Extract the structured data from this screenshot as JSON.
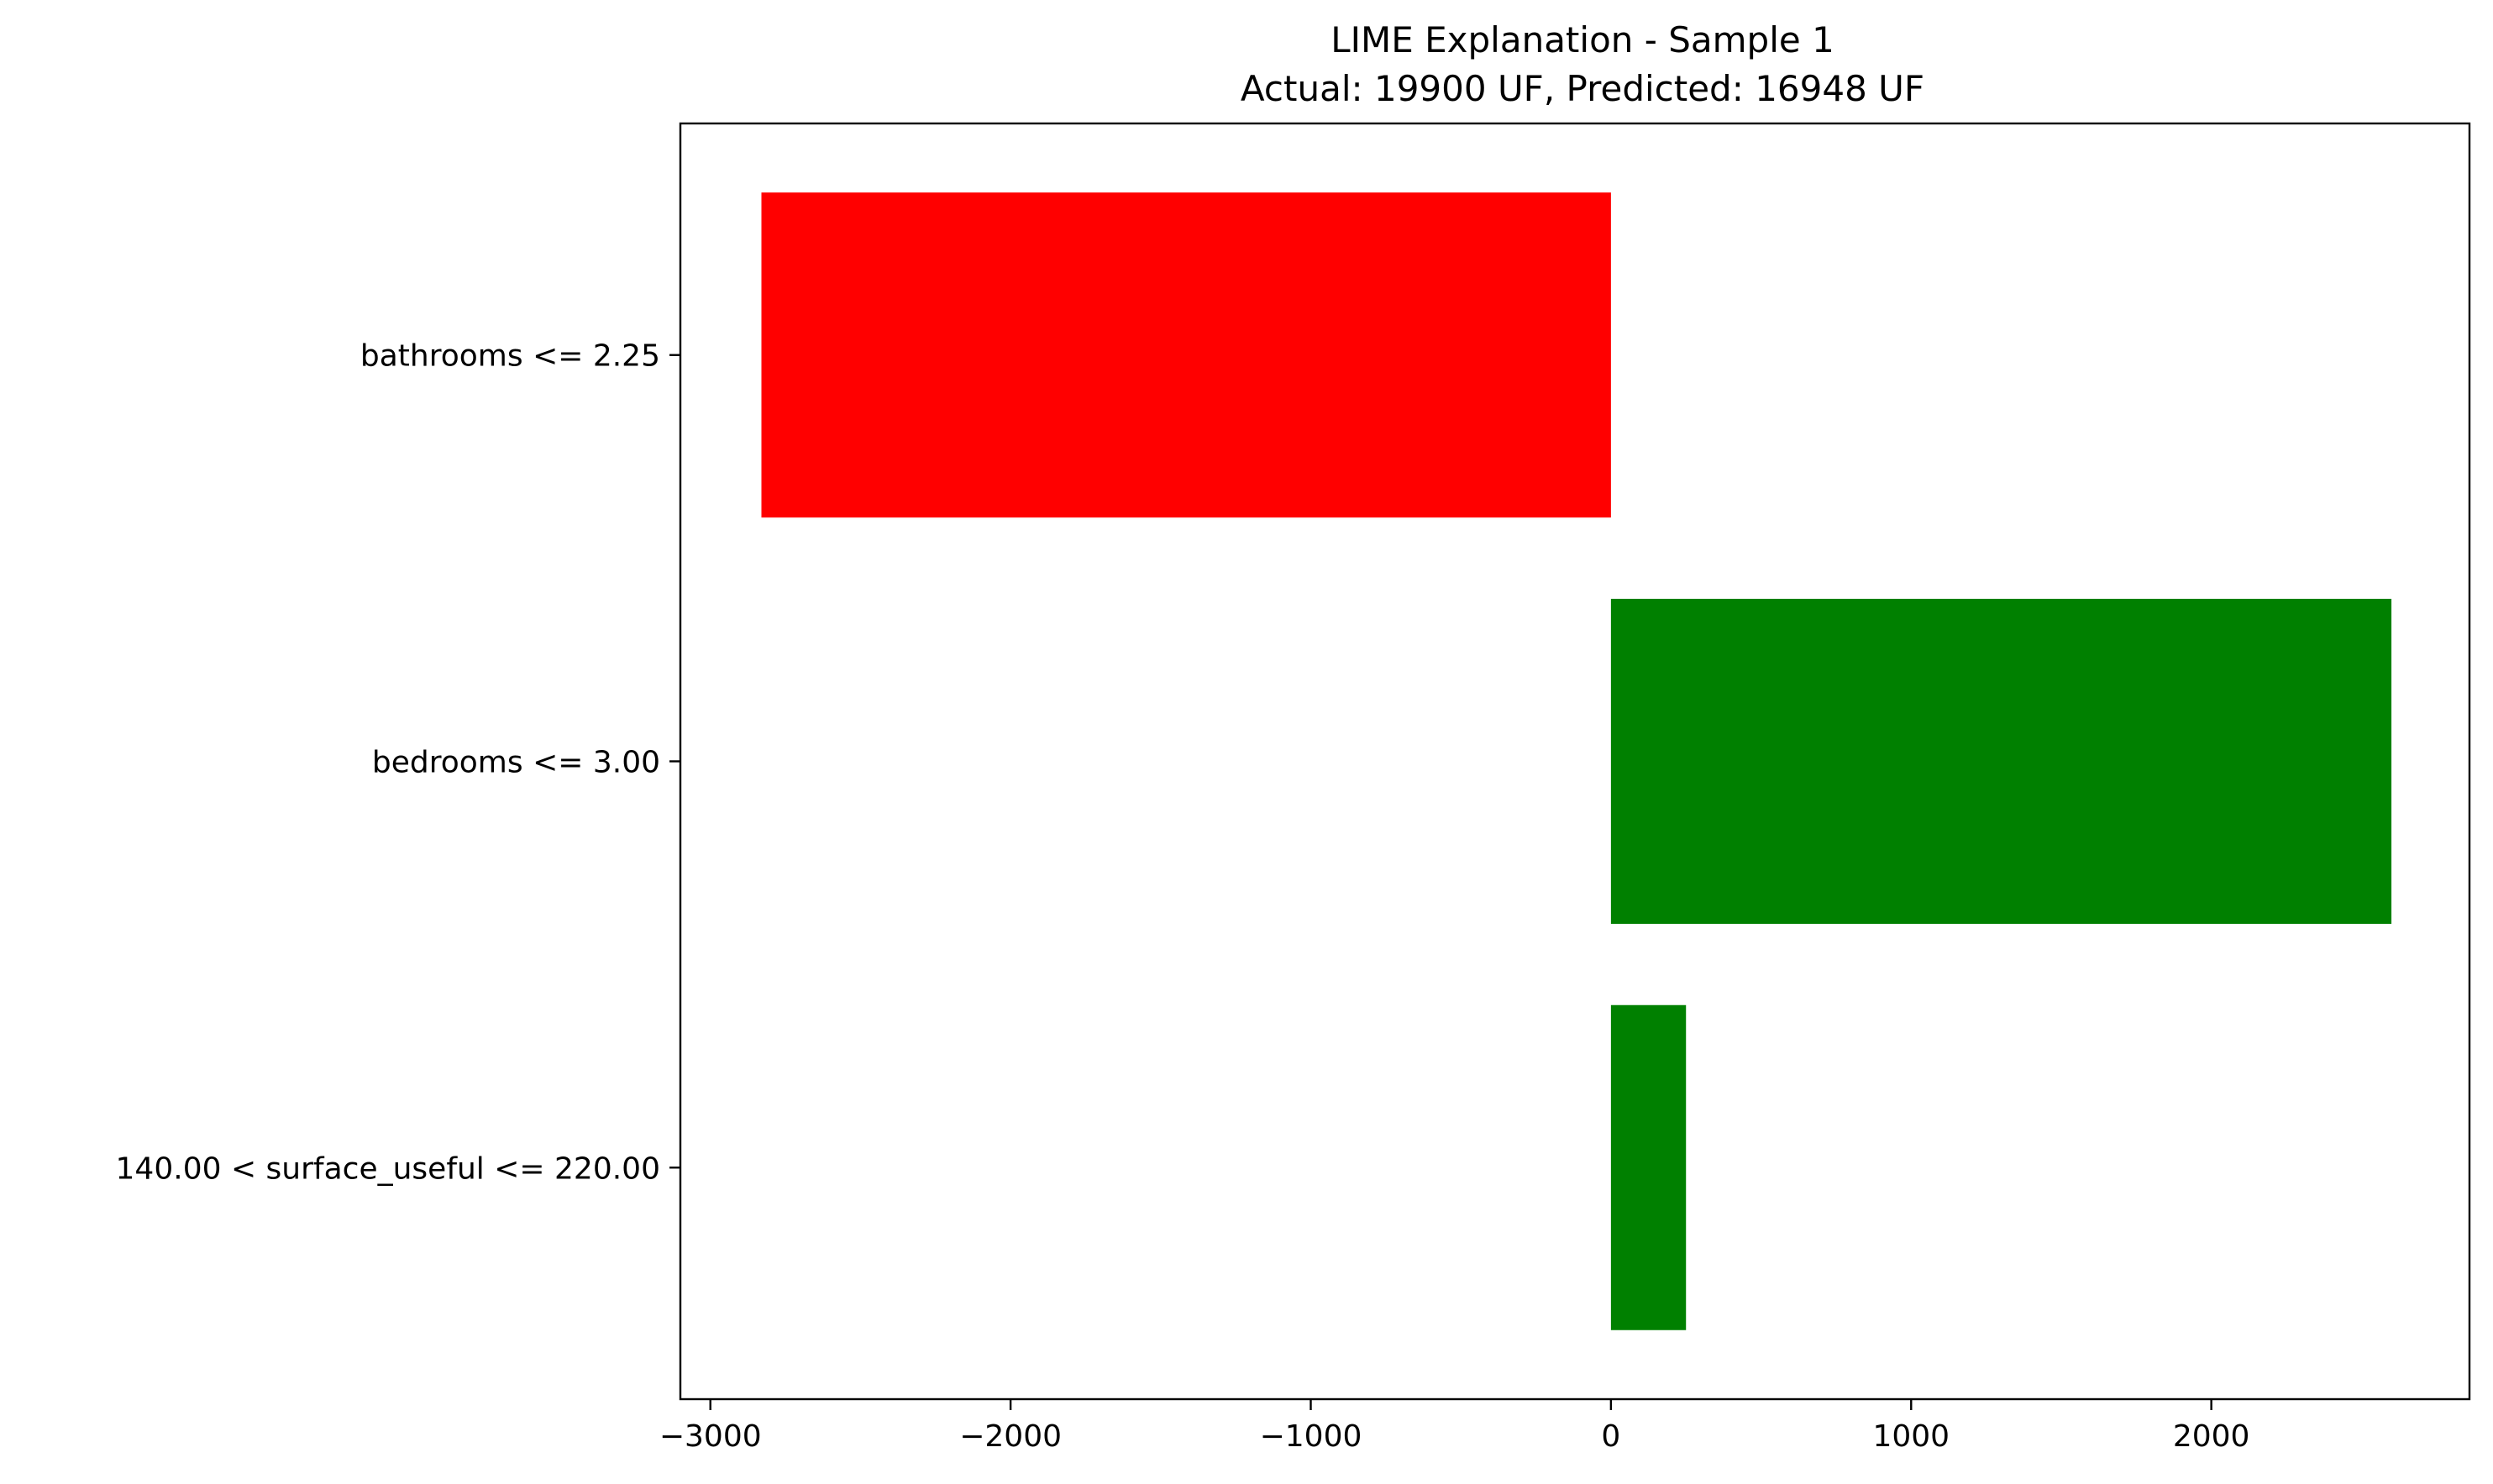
{
  "chart_data": {
    "type": "bar",
    "orientation": "horizontal",
    "title": "LIME Explanation - Sample 1",
    "subtitle": "Actual: 19900 UF, Predicted: 16948 UF",
    "xlabel": "",
    "ylabel": "",
    "categories": [
      "bathrooms <= 2.25",
      "bedrooms <= 3.00",
      "140.00 < surface_useful <= 220.00"
    ],
    "values": [
      -2830,
      2600,
      250
    ],
    "bar_colors": [
      "#ff0000",
      "#008000",
      "#008000"
    ],
    "xlim": [
      -3100,
      2860
    ],
    "xticks": [
      -3000,
      -2000,
      -1000,
      0,
      1000,
      2000
    ],
    "xtick_labels": [
      "−3000",
      "−2000",
      "−1000",
      "0",
      "1000",
      "2000"
    ],
    "grid": false,
    "legend": "none"
  }
}
